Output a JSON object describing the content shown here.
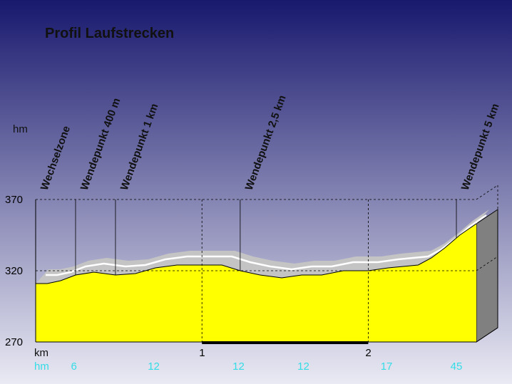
{
  "chart_data": {
    "type": "area",
    "title": "Profil Laufstrecken",
    "ylabel": "hm",
    "xlabel": "km",
    "ylim": [
      270,
      370
    ],
    "xlim": [
      0,
      2.65
    ],
    "yticks": [
      270,
      320,
      370
    ],
    "xticks": [
      1,
      2
    ],
    "grid": true,
    "colors": {
      "fill": "#ffff00",
      "shadow": "#c4c4c4",
      "highlight": "#ffffff",
      "wall": "#808080",
      "outline": "#000000",
      "grid": "#000000",
      "bg_top": "#18186e",
      "bg_bottom": "#eaeaf4",
      "hm_text": "#33dde6",
      "marker_bar": "#000000"
    },
    "series": [
      {
        "x": [
          0,
          0.07,
          0.15,
          0.24,
          0.35,
          0.48,
          0.6,
          0.72,
          0.85,
          1.0,
          1.12,
          1.23,
          1.35,
          1.48,
          1.6,
          1.72,
          1.85,
          2.0,
          2.12,
          2.3,
          2.38,
          2.46,
          2.55,
          2.65
        ],
        "y": [
          311,
          311,
          313,
          317,
          319,
          317,
          318,
          322,
          324,
          324,
          324,
          320,
          317,
          315,
          317,
          317,
          320,
          320,
          322,
          324,
          329,
          336,
          345,
          353
        ]
      }
    ],
    "annotations": [
      {
        "label": "Wechselzone",
        "x": 0.0
      },
      {
        "label": "Wendepunkt 400 m",
        "x": 0.24
      },
      {
        "label": "Wendepunkt 1 km",
        "x": 0.48
      },
      {
        "label": "Wendepunkt 2,5 km",
        "x": 1.23
      },
      {
        "label": "Wendepunkt 5 km",
        "x": 2.53
      }
    ],
    "x_highlight": [
      1,
      2
    ],
    "hm_row": {
      "label": "hm",
      "values": [
        {
          "x": 0.23,
          "text": "6"
        },
        {
          "x": 0.71,
          "text": "12"
        },
        {
          "x": 1.22,
          "text": "12"
        },
        {
          "x": 1.61,
          "text": "12"
        },
        {
          "x": 2.11,
          "text": "17"
        },
        {
          "x": 2.53,
          "text": "45"
        }
      ]
    }
  }
}
